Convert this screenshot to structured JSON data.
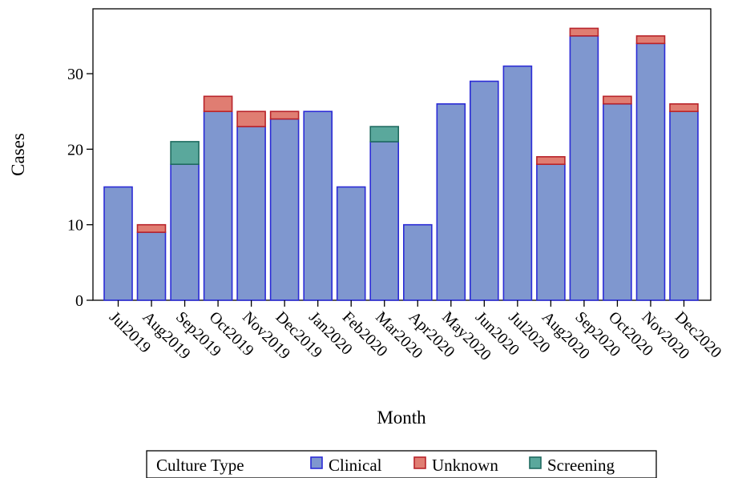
{
  "chart_data": {
    "type": "bar",
    "stacked": true,
    "xlabel": "Month",
    "ylabel": "Cases",
    "ylim": [
      0,
      37
    ],
    "yticks": [
      0,
      10,
      20,
      30
    ],
    "grid": false,
    "legend_position": "bottom",
    "legend_title": "Culture Type",
    "categories": [
      "Jul2019",
      "Aug2019",
      "Sep2019",
      "Oct2019",
      "Nov2019",
      "Dec2019",
      "Jan2020",
      "Feb2020",
      "Mar2020",
      "Apr2020",
      "May2020",
      "Jun2020",
      "Jul2020",
      "Aug2020",
      "Sep2020",
      "Oct2020",
      "Nov2020",
      "Dec2020"
    ],
    "series": [
      {
        "name": "Clinical",
        "color": "#7f97cf",
        "stroke": "#2b2bd6",
        "values": [
          15,
          9,
          18,
          25,
          23,
          24,
          25,
          15,
          21,
          10,
          26,
          29,
          31,
          18,
          35,
          26,
          34,
          25
        ]
      },
      {
        "name": "Unknown",
        "color": "#e07d72",
        "stroke": "#b8232a",
        "values": [
          0,
          1,
          0,
          2,
          2,
          1,
          0,
          0,
          0,
          0,
          0,
          0,
          0,
          1,
          1,
          1,
          1,
          1
        ]
      },
      {
        "name": "Screening",
        "color": "#5aa89c",
        "stroke": "#1f6b60",
        "values": [
          0,
          0,
          3,
          0,
          0,
          0,
          0,
          0,
          2,
          0,
          0,
          0,
          0,
          0,
          0,
          0,
          0,
          0
        ]
      }
    ]
  }
}
